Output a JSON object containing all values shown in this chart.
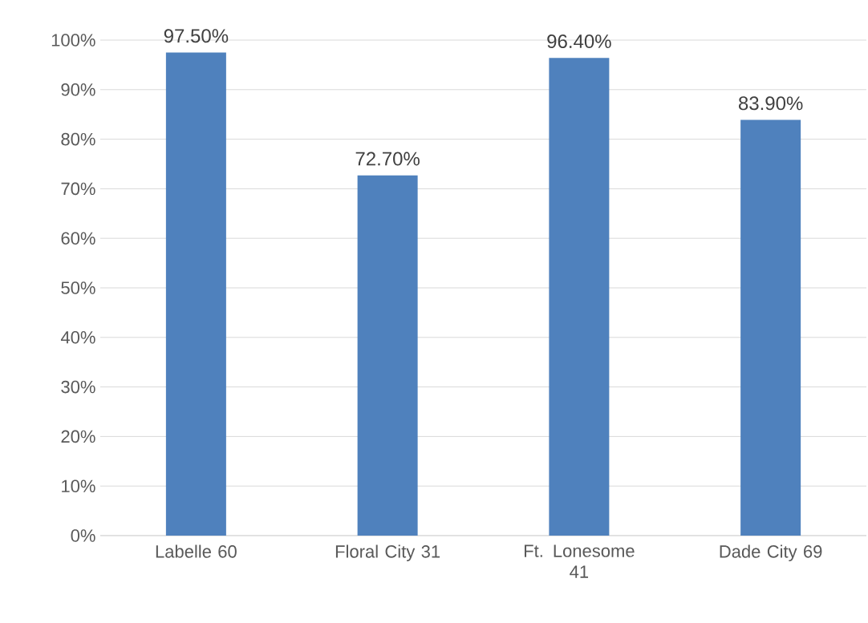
{
  "chart_data": {
    "type": "bar",
    "categories": [
      "Labelle 60",
      "Floral City 31",
      "Ft. Lonesome 41",
      "Dade City 69"
    ],
    "values": [
      97.5,
      72.7,
      96.4,
      83.9
    ],
    "value_labels": [
      "97.50%",
      "72.70%",
      "96.40%",
      "83.90%"
    ],
    "color": "#4f81bd",
    "ylim": [
      0,
      100
    ],
    "yticks": [
      {
        "value": 0,
        "label": "0%"
      },
      {
        "value": 10,
        "label": "10%"
      },
      {
        "value": 20,
        "label": "20%"
      },
      {
        "value": 30,
        "label": "30%"
      },
      {
        "value": 40,
        "label": "40%"
      },
      {
        "value": 50,
        "label": "50%"
      },
      {
        "value": 60,
        "label": "60%"
      },
      {
        "value": 70,
        "label": "70%"
      },
      {
        "value": 80,
        "label": "80%"
      },
      {
        "value": 90,
        "label": "90%"
      },
      {
        "value": 100,
        "label": "100%"
      }
    ],
    "grid": "y"
  }
}
